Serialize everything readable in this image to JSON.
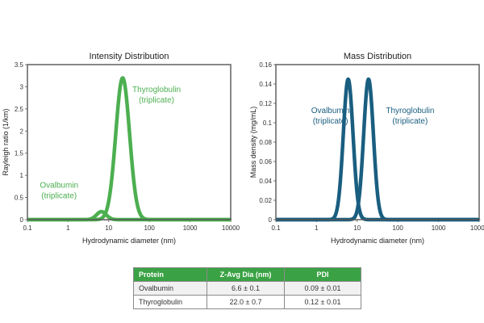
{
  "chart_data": [
    {
      "type": "line",
      "title": "Intensity Distribution",
      "xlabel": "Hydrodynamic diameter (nm)",
      "ylabel": "Rayleigh ratio (1/km)",
      "xscale": "log",
      "xlim": [
        0.1,
        10000
      ],
      "ylim": [
        0,
        3.5
      ],
      "x_ticks": [
        "0.1",
        "1",
        "10",
        "100",
        "1000",
        "10000"
      ],
      "y_ticks": [
        "0",
        "0.5",
        "1",
        "1.5",
        "2",
        "2.5",
        "3",
        "3.5"
      ],
      "color": "#4caf50",
      "series": [
        {
          "name": "Ovalbumin (triplicate)",
          "peak_x": 6.6,
          "peak_y": 0.18,
          "width_log10": 0.12
        },
        {
          "name": "Thyroglobulin (triplicate)",
          "peak_x": 22.0,
          "peak_y": 3.2,
          "width_log10": 0.17
        }
      ],
      "annotations": [
        {
          "series": 0,
          "lines": [
            "Ovalbumin",
            "(triplicate)"
          ],
          "x": 0.6,
          "y": 0.72
        },
        {
          "series": 1,
          "lines": [
            "Thyroglobulin",
            "(triplicate)"
          ],
          "x": 150,
          "y": 2.88
        }
      ]
    },
    {
      "type": "line",
      "title": "Mass Distribution",
      "xlabel": "Hydrodynamic diameter (nm)",
      "ylabel": "Mass density (mg/mL)",
      "xscale": "log",
      "xlim": [
        0.1,
        10000
      ],
      "ylim": [
        0,
        0.16
      ],
      "x_ticks": [
        "0.1",
        "1",
        "10",
        "100",
        "1000",
        "10000"
      ],
      "y_ticks": [
        "0",
        "0.02",
        "0.04",
        "0.06",
        "0.08",
        "0.1",
        "0.12",
        "0.14",
        "0.16"
      ],
      "color": "#1a5e80",
      "series": [
        {
          "name": "Ovalbumin (triplicate)",
          "peak_x": 6.0,
          "peak_y": 0.145,
          "width_log10": 0.12
        },
        {
          "name": "Thyroglobulin (triplicate)",
          "peak_x": 19.0,
          "peak_y": 0.145,
          "width_log10": 0.12
        }
      ],
      "annotations": [
        {
          "series": 0,
          "lines": [
            "Ovalbumin",
            "(triplicate)"
          ],
          "x": 2.2,
          "y": 0.11
        },
        {
          "series": 1,
          "lines": [
            "Thyroglobulin",
            "(triplicate)"
          ],
          "x": 200,
          "y": 0.11
        }
      ]
    }
  ],
  "table": {
    "headers": [
      "Protein",
      "Z-Avg Dia (nm)",
      "PDI"
    ],
    "rows": [
      [
        "Ovalbumin",
        "6.6 ± 0.1",
        "0.09 ± 0.01"
      ],
      [
        "Thyroglobulin",
        "22.0 ± 0.7",
        "0.12 ± 0.01"
      ]
    ]
  }
}
